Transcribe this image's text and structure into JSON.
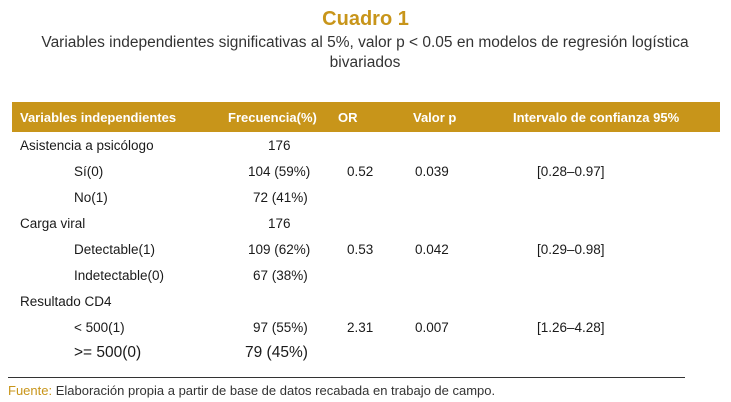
{
  "title": "Cuadro 1",
  "subtitle": "Variables independientes significativas al 5%, valor p < 0.05 en modelos de regresión logística bivariados",
  "headers": {
    "variable": "Variables independientes",
    "frequency": "Frecuencia(%)",
    "or": "OR",
    "p": "Valor p",
    "ci": "Intervalo de confianza 95%"
  },
  "rows": [
    {
      "variable": "Asistencia a psicólogo",
      "frequency": "176",
      "or": "",
      "p": "",
      "ci": ""
    },
    {
      "variable": "Sí(0)",
      "frequency": "104 (59%)",
      "or": "0.52",
      "p": "0.039",
      "ci": "[0.28–0.97]"
    },
    {
      "variable": "No(1)",
      "frequency": "72 (41%)",
      "or": "",
      "p": "",
      "ci": ""
    },
    {
      "variable": "Carga viral",
      "frequency": "176",
      "or": "",
      "p": "",
      "ci": ""
    },
    {
      "variable": "Detectable(1)",
      "frequency": "109 (62%)",
      "or": "0.53",
      "p": "0.042",
      "ci": "[0.29–0.98]"
    },
    {
      "variable": "Indetectable(0)",
      "frequency": "67 (38%)",
      "or": "",
      "p": "",
      "ci": ""
    },
    {
      "variable": "Resultado CD4",
      "frequency": "",
      "or": "",
      "p": "",
      "ci": ""
    },
    {
      "variable": "< 500(1)",
      "frequency": "97 (55%)",
      "or": "2.31",
      "p": "0.007",
      "ci": "[1.26–4.28]"
    },
    {
      "variable": ">= 500(0)",
      "frequency": "79 (45%)",
      "or": "",
      "p": "",
      "ci": ""
    }
  ],
  "source": {
    "label": "Fuente:",
    "text": "Elaboración propia a partir de base de datos recabada en trabajo de campo."
  },
  "colors": {
    "accent": "#c8951a"
  }
}
